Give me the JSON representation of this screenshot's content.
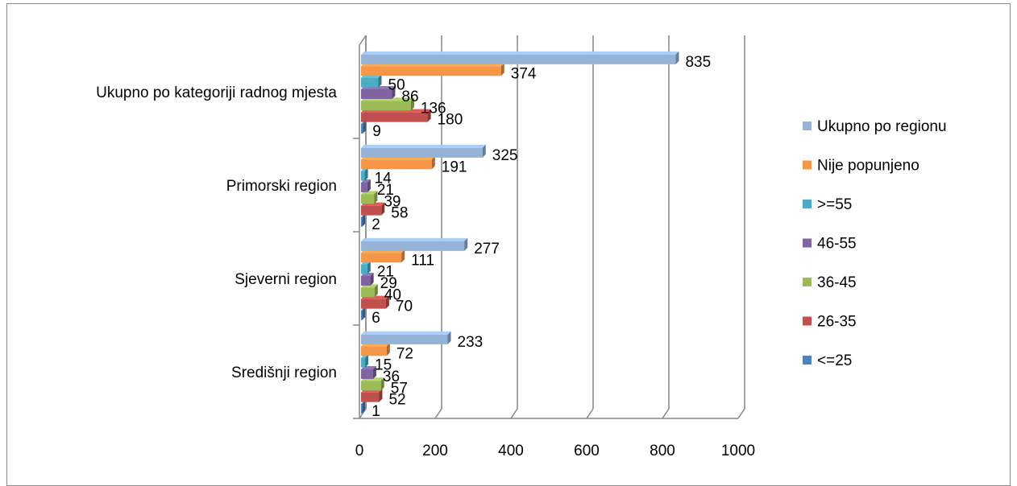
{
  "chart_data": {
    "type": "bar",
    "orientation": "horizontal",
    "style": "3d-clustered",
    "categories": [
      "Središnji region",
      "Sjeverni region",
      "Primorski region",
      "Ukupno po kategoriji radnog mjesta"
    ],
    "series": [
      {
        "name": "<=25",
        "color": "#4F81BD",
        "values": [
          1,
          6,
          2,
          9
        ]
      },
      {
        "name": "26-35",
        "color": "#C0504D",
        "values": [
          52,
          70,
          58,
          180
        ]
      },
      {
        "name": "36-45",
        "color": "#9BBB59",
        "values": [
          57,
          40,
          39,
          136
        ]
      },
      {
        "name": "46-55",
        "color": "#8064A2",
        "values": [
          36,
          29,
          21,
          86
        ]
      },
      {
        "name": ">=55",
        "color": "#4BACC6",
        "values": [
          15,
          21,
          14,
          50
        ]
      },
      {
        "name": "Nije popunjeno",
        "color": "#F79646",
        "values": [
          72,
          111,
          191,
          374
        ]
      },
      {
        "name": "Ukupno po regionu",
        "color": "#95B3D7",
        "values": [
          233,
          277,
          325,
          835
        ]
      }
    ],
    "legend_order": [
      "Ukupno po regionu",
      "Nije popunjeno",
      ">=55",
      "46-55",
      "36-45",
      "26-35",
      "<=25"
    ],
    "xlim": [
      0,
      1000
    ],
    "xticks": [
      0,
      200,
      400,
      600,
      800,
      1000
    ],
    "grid": true,
    "legend_position": "right"
  }
}
